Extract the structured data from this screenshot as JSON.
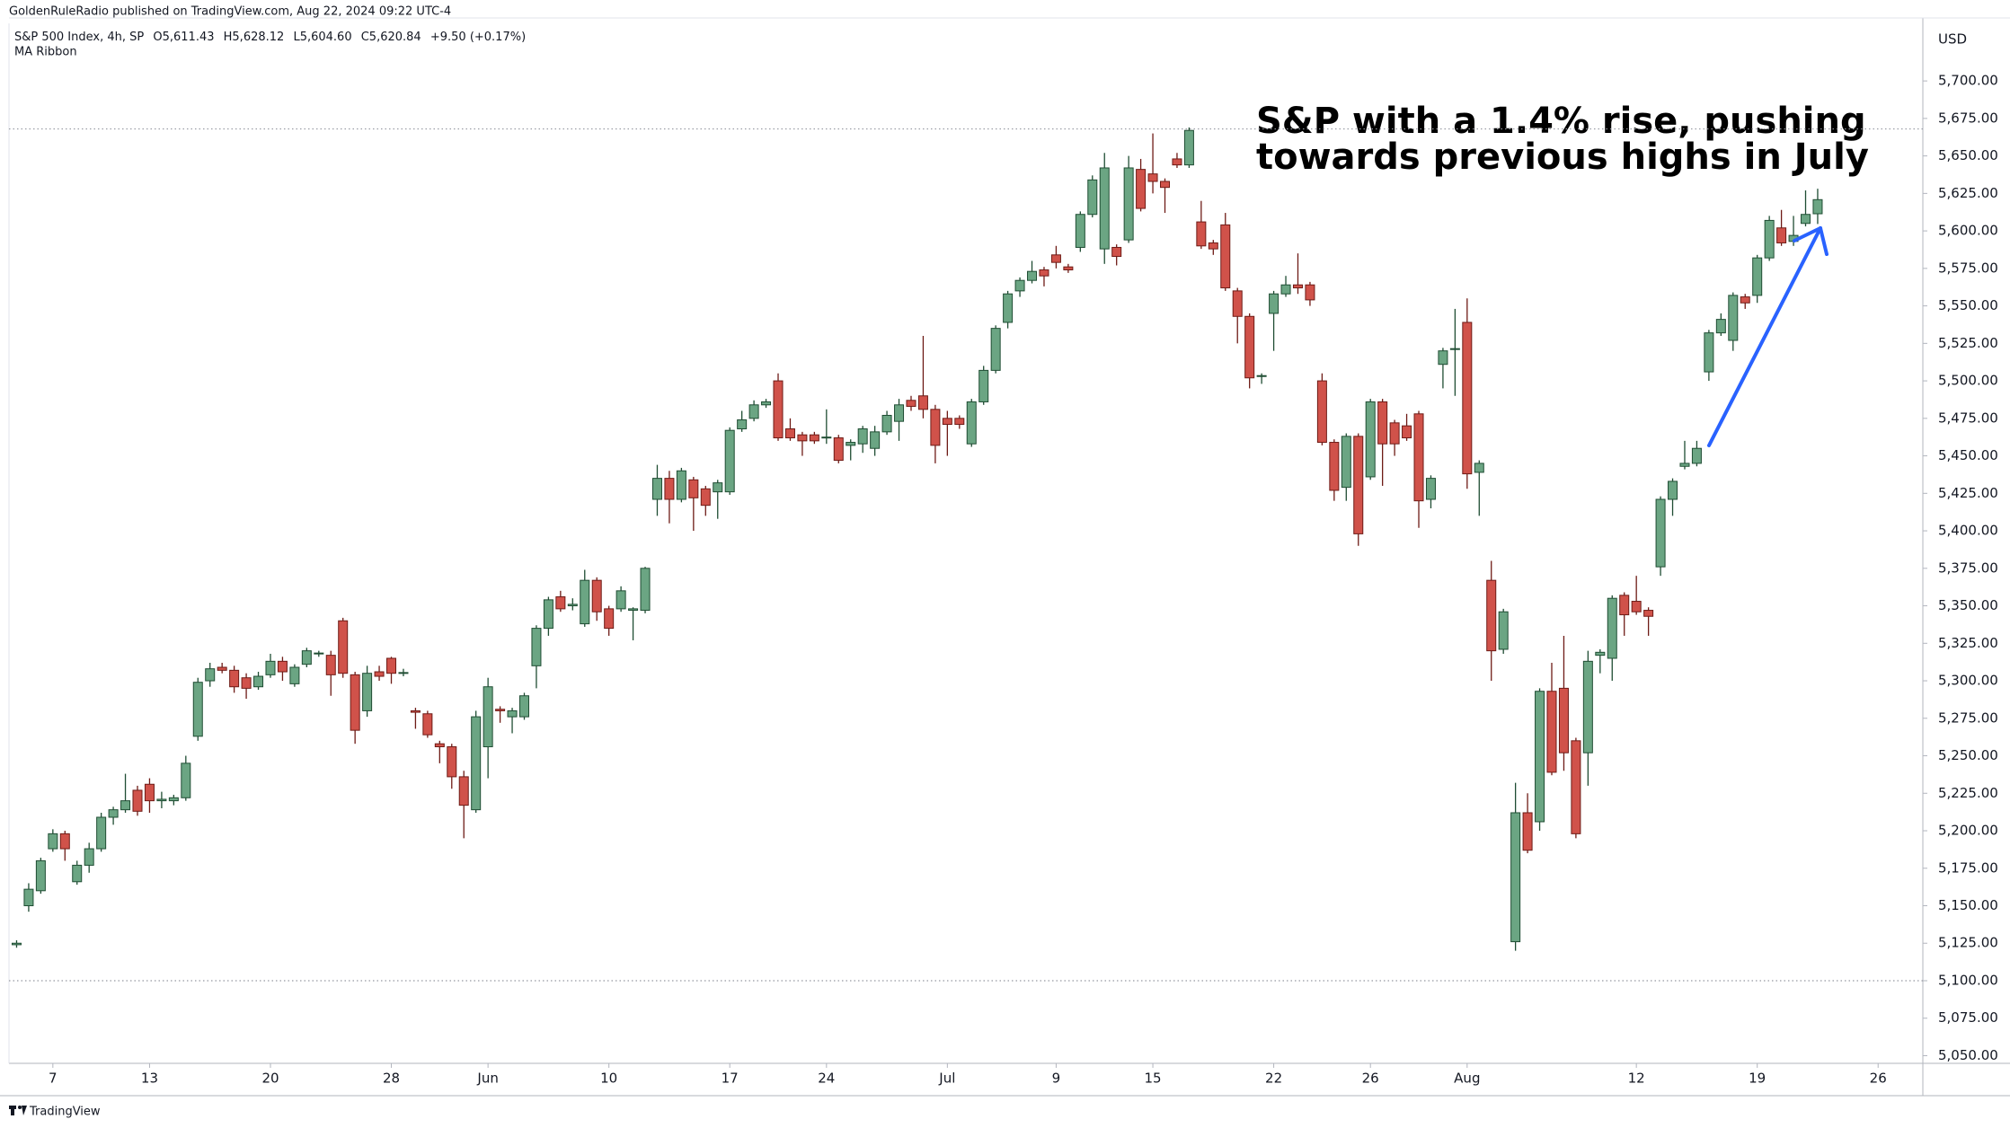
{
  "header": {
    "publisher": "GoldenRuleRadio published on TradingView.com, Aug 22, 2024 09:22 UTC-4",
    "symbol": "S&P 500 Index, 4h, SP",
    "open": "O5,611.43",
    "high": "H5,628.12",
    "low": "L5,604.60",
    "close": "C5,620.84",
    "change": "+9.50 (+0.17%)",
    "indicator": "MA Ribbon",
    "currency": "USD"
  },
  "footer": {
    "brand": "TradingView"
  },
  "chart_data": {
    "type": "candlestick",
    "annotation": [
      "S&P with a 1.4% rise, pushing",
      "towards previous highs in July"
    ],
    "up_color": "#6ba583",
    "up_border": "#1f4d33",
    "down_color": "#d0524a",
    "down_border": "#6e1b16",
    "reference_lines": [
      5668,
      5100
    ],
    "xlim": [
      -0.63,
      157.7
    ],
    "xticks": [
      {
        "value": 3,
        "label": "7"
      },
      {
        "value": 11,
        "label": "13"
      },
      {
        "value": 21,
        "label": "20"
      },
      {
        "value": 31,
        "label": "28"
      },
      {
        "value": 39,
        "label": "Jun"
      },
      {
        "value": 49,
        "label": "10"
      },
      {
        "value": 59,
        "label": "17"
      },
      {
        "value": 67,
        "label": "24"
      },
      {
        "value": 77,
        "label": "Jul"
      },
      {
        "value": 86,
        "label": "9"
      },
      {
        "value": 94,
        "label": "15"
      },
      {
        "value": 104,
        "label": "22"
      },
      {
        "value": 112,
        "label": "26"
      },
      {
        "value": 120,
        "label": "Aug"
      },
      {
        "value": 134,
        "label": "12"
      },
      {
        "value": 144,
        "label": "19"
      },
      {
        "value": 154,
        "label": "26"
      }
    ],
    "ylim": [
      5044.9,
      5738.4
    ],
    "yticks": [
      {
        "value": 5050,
        "label": "5,050.00"
      },
      {
        "value": 5075,
        "label": "5,075.00"
      },
      {
        "value": 5100,
        "label": "5,100.00"
      },
      {
        "value": 5125,
        "label": "5,125.00"
      },
      {
        "value": 5150,
        "label": "5,150.00"
      },
      {
        "value": 5175,
        "label": "5,175.00"
      },
      {
        "value": 5200,
        "label": "5,200.00"
      },
      {
        "value": 5225,
        "label": "5,225.00"
      },
      {
        "value": 5250,
        "label": "5,250.00"
      },
      {
        "value": 5275,
        "label": "5,275.00"
      },
      {
        "value": 5300,
        "label": "5,300.00"
      },
      {
        "value": 5325,
        "label": "5,325.00"
      },
      {
        "value": 5350,
        "label": "5,350.00"
      },
      {
        "value": 5375,
        "label": "5,375.00"
      },
      {
        "value": 5400,
        "label": "5,400.00"
      },
      {
        "value": 5425,
        "label": "5,425.00"
      },
      {
        "value": 5450,
        "label": "5,450.00"
      },
      {
        "value": 5475,
        "label": "5,475.00"
      },
      {
        "value": 5500,
        "label": "5,500.00"
      },
      {
        "value": 5525,
        "label": "5,525.00"
      },
      {
        "value": 5550,
        "label": "5,550.00"
      },
      {
        "value": 5575,
        "label": "5,575.00"
      },
      {
        "value": 5600,
        "label": "5,600.00"
      },
      {
        "value": 5625,
        "label": "5,625.00"
      },
      {
        "value": 5650,
        "label": "5,650.00"
      },
      {
        "value": 5675,
        "label": "5,675.00"
      },
      {
        "value": 5700,
        "label": "5,700.00"
      }
    ],
    "x": [
      0,
      1,
      2,
      3,
      4,
      5,
      6,
      7,
      8,
      9,
      10,
      11,
      12,
      13,
      14,
      15,
      16,
      17,
      18,
      19,
      20,
      21,
      22,
      23,
      24,
      25,
      26,
      27,
      28,
      29,
      30,
      31,
      32,
      33,
      34,
      35,
      36,
      37,
      38,
      39,
      40,
      41,
      42,
      43,
      44,
      45,
      46,
      47,
      48,
      49,
      50,
      51,
      52,
      53,
      54,
      55,
      56,
      57,
      58,
      59,
      60,
      61,
      62,
      63,
      64,
      65,
      66,
      67,
      68,
      69,
      70,
      71,
      72,
      73,
      74,
      75,
      76,
      77,
      78,
      79,
      80,
      81,
      82,
      83,
      84,
      85,
      86,
      87,
      88,
      89,
      90,
      91,
      92,
      93,
      94,
      95,
      96,
      97,
      98,
      99,
      100,
      101,
      102,
      103,
      104,
      105,
      106,
      107,
      108,
      109,
      110,
      111,
      112,
      113,
      114,
      115,
      116,
      117,
      118,
      119,
      120,
      121,
      122,
      123,
      124,
      125,
      126,
      127,
      128,
      129,
      130,
      131,
      132,
      133,
      134,
      135,
      136,
      137,
      138,
      139,
      140,
      141,
      142,
      143,
      144,
      145,
      146,
      147,
      148,
      149
    ],
    "open": [
      5124,
      5150,
      5160,
      5188,
      5198,
      5166,
      5177,
      5188,
      5209,
      5214,
      5227,
      5231,
      5220,
      5220,
      5222,
      5263,
      5300,
      5309,
      5307,
      5302,
      5296,
      5304,
      5313,
      5298,
      5311,
      5318,
      5317,
      5340,
      5304,
      5280,
      5306,
      5315,
      5305,
      5280,
      5278,
      5258,
      5256,
      5236,
      5214,
      5256,
      5281,
      5276,
      5276,
      5310,
      5335,
      5356,
      5350,
      5338,
      5367,
      5348,
      5348,
      5347,
      5347,
      5421,
      5435,
      5421,
      5434,
      5428,
      5426,
      5426,
      5468,
      5475,
      5484,
      5500,
      5468,
      5464,
      5464,
      5462,
      5462,
      5457,
      5458,
      5455,
      5466,
      5473,
      5487,
      5490,
      5481,
      5475,
      5475,
      5458,
      5486,
      5507,
      5539,
      5560,
      5567,
      5574,
      5584,
      5576,
      5589,
      5611,
      5588,
      5589,
      5594,
      5641,
      5638,
      5633,
      5648,
      5644,
      5606,
      5592,
      5604,
      5560,
      5543,
      5503,
      5545,
      5558,
      5564,
      5564,
      5500,
      5459,
      5429,
      5463,
      5436,
      5486,
      5472,
      5470,
      5478,
      5421,
      5511,
      5521,
      5539,
      5439,
      5367,
      5321,
      5126,
      5212,
      5206,
      5293,
      5295,
      5260,
      5252,
      5317,
      5315,
      5357,
      5353,
      5347,
      5376,
      5421,
      5443,
      5445,
      5506,
      5532,
      5527,
      5556,
      5557,
      5582,
      5602,
      5593,
      5605,
      5611.43
    ],
    "high": [
      5127,
      5165,
      5182,
      5201,
      5200,
      5180,
      5192,
      5212,
      5216,
      5238,
      5230,
      5235,
      5226,
      5224,
      5250,
      5302,
      5312,
      5312,
      5310,
      5305,
      5306,
      5318,
      5316,
      5311,
      5322,
      5320,
      5320,
      5342,
      5306,
      5310,
      5310,
      5316,
      5308,
      5282,
      5280,
      5260,
      5258,
      5240,
      5280,
      5302,
      5283,
      5282,
      5292,
      5337,
      5356,
      5360,
      5355,
      5374,
      5369,
      5350,
      5363,
      5349,
      5376,
      5444,
      5440,
      5442,
      5436,
      5430,
      5434,
      5469,
      5480,
      5487,
      5488,
      5505,
      5475,
      5466,
      5466,
      5481,
      5464,
      5461,
      5470,
      5470,
      5480,
      5488,
      5490,
      5530,
      5484,
      5480,
      5477,
      5488,
      5510,
      5537,
      5560,
      5569,
      5580,
      5576,
      5590,
      5578,
      5613,
      5637,
      5652,
      5591,
      5650,
      5648,
      5665,
      5635,
      5652,
      5669,
      5620,
      5594,
      5612,
      5562,
      5545,
      5505,
      5560,
      5570,
      5585,
      5566,
      5505,
      5461,
      5465,
      5465,
      5488,
      5488,
      5474,
      5478,
      5480,
      5437,
      5522,
      5548,
      5555,
      5447,
      5380,
      5348,
      5232,
      5225,
      5295,
      5312,
      5330,
      5262,
      5320,
      5321,
      5357,
      5359,
      5370,
      5349,
      5423,
      5435,
      5460,
      5460,
      5534,
      5545,
      5559,
      5558,
      5584,
      5610,
      5614,
      5610,
      5627,
      5628.12
    ],
    "low": [
      5122,
      5146,
      5158,
      5186,
      5180,
      5164,
      5172,
      5186,
      5204,
      5212,
      5210,
      5212,
      5215,
      5217,
      5220,
      5260,
      5296,
      5305,
      5292,
      5288,
      5294,
      5302,
      5300,
      5296,
      5309,
      5316,
      5290,
      5302,
      5258,
      5276,
      5300,
      5298,
      5303,
      5268,
      5262,
      5245,
      5228,
      5195,
      5212,
      5235,
      5272,
      5265,
      5274,
      5295,
      5330,
      5346,
      5347,
      5336,
      5340,
      5330,
      5346,
      5327,
      5345,
      5410,
      5405,
      5419,
      5400,
      5410,
      5408,
      5424,
      5466,
      5473,
      5482,
      5460,
      5460,
      5450,
      5458,
      5458,
      5445,
      5447,
      5452,
      5450,
      5464,
      5460,
      5480,
      5475,
      5445,
      5450,
      5468,
      5456,
      5484,
      5505,
      5535,
      5556,
      5565,
      5563,
      5575,
      5572,
      5586,
      5609,
      5578,
      5577,
      5592,
      5613,
      5625,
      5612,
      5642,
      5642,
      5588,
      5584,
      5560,
      5525,
      5495,
      5498,
      5520,
      5556,
      5558,
      5550,
      5457,
      5420,
      5420,
      5390,
      5434,
      5430,
      5450,
      5460,
      5402,
      5415,
      5495,
      5490,
      5428,
      5410,
      5300,
      5318,
      5120,
      5185,
      5200,
      5237,
      5240,
      5195,
      5230,
      5305,
      5300,
      5330,
      5344,
      5330,
      5370,
      5410,
      5441,
      5443,
      5500,
      5530,
      5520,
      5548,
      5552,
      5580,
      5590,
      5590,
      5603,
      5604.6
    ],
    "close": [
      5125,
      5161,
      5180,
      5198,
      5188,
      5177,
      5188,
      5209,
      5214,
      5220,
      5213,
      5220,
      5221,
      5222,
      5245,
      5299,
      5308,
      5307,
      5296,
      5295,
      5303,
      5313,
      5306,
      5309,
      5320,
      5318.5,
      5304,
      5305,
      5267,
      5305,
      5303,
      5305,
      5305.5,
      5279,
      5264,
      5256,
      5236,
      5217,
      5276,
      5296,
      5280,
      5280,
      5290,
      5335,
      5354,
      5348,
      5351,
      5367,
      5346,
      5335,
      5360,
      5348,
      5375,
      5435,
      5421,
      5440,
      5422,
      5417,
      5432,
      5467,
      5474,
      5484,
      5486,
      5462,
      5462,
      5460,
      5460,
      5462.5,
      5447,
      5459,
      5468,
      5466,
      5477,
      5484,
      5483,
      5481,
      5457,
      5471,
      5471,
      5486,
      5507,
      5535,
      5558,
      5567,
      5573,
      5570,
      5579,
      5574,
      5611,
      5634,
      5642,
      5583,
      5642,
      5615,
      5633,
      5629,
      5644,
      5667,
      5590,
      5588,
      5562,
      5543,
      5502,
      5503.5,
      5558,
      5564,
      5562,
      5554,
      5459,
      5427,
      5463,
      5398,
      5486,
      5458,
      5458,
      5462,
      5420,
      5435,
      5520,
      5521.5,
      5438,
      5445,
      5320,
      5346,
      5212,
      5187,
      5293,
      5239,
      5252,
      5198,
      5313,
      5319,
      5355,
      5344,
      5346,
      5343,
      5421,
      5433,
      5445,
      5455,
      5532,
      5541,
      5557,
      5552,
      5582,
      5607,
      5592,
      5597,
      5611,
      5620.84
    ]
  }
}
